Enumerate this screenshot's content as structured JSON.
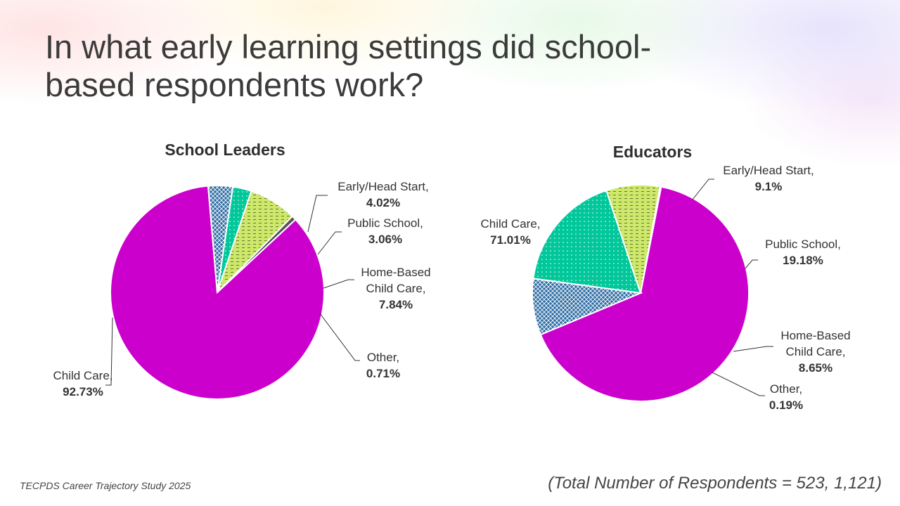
{
  "slide": {
    "title_line1": "In what early learning settings did school-",
    "title_line2": "based respondents work?",
    "footer_source": "TECPDS Career Trajectory Study 2025",
    "footer_total": "(Total Number of Respondents = 523, 1,121)"
  },
  "colors": {
    "child_care": "#cc00cc",
    "early_head_start": "#2e6da4",
    "public_school": "#00c89a",
    "home_based": "#cde86a",
    "other": "#555555"
  },
  "chart_data": [
    {
      "type": "pie",
      "title": "School Leaders",
      "slices": [
        {
          "name": "Child Care,",
          "value": 92.73,
          "value_label": "92.73%"
        },
        {
          "name": "Early/Head Start,",
          "value": 4.02,
          "value_label": "4.02%"
        },
        {
          "name": "Public School,",
          "value": 3.06,
          "value_label": "3.06%"
        },
        {
          "name": "Home-Based Child Care,",
          "value": 7.84,
          "value_label": "7.84%"
        },
        {
          "name": "Other,",
          "value": 0.71,
          "value_label": "0.71%"
        }
      ]
    },
    {
      "type": "pie",
      "title": "Educators",
      "slices": [
        {
          "name": "Child Care,",
          "value": 71.01,
          "value_label": "71.01%"
        },
        {
          "name": "Early/Head Start,",
          "value": 9.1,
          "value_label": "9.1%"
        },
        {
          "name": "Public School,",
          "value": 19.18,
          "value_label": "19.18%"
        },
        {
          "name": "Home-Based Child Care,",
          "value": 8.65,
          "value_label": "8.65%"
        },
        {
          "name": "Other,",
          "value": 0.19,
          "value_label": "0.19%"
        }
      ]
    }
  ]
}
